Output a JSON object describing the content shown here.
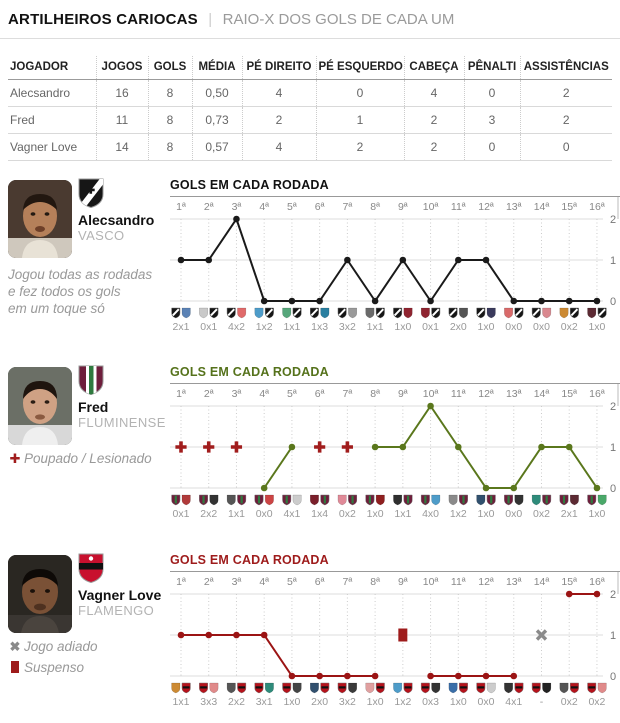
{
  "header": {
    "title": "ARTILHEIROS CARIOCAS",
    "separator": "|",
    "subtitle": "RAIO-X DOS GOLS DE CADA UM"
  },
  "table": {
    "headers": [
      "JOGADOR",
      "JOGOS",
      "GOLS",
      "MÉDIA",
      "PÉ DIREITO",
      "PÉ ESQUERDO",
      "CABEÇA",
      "PÊNALTI",
      "ASSISTÊNCIAS"
    ],
    "rows": [
      {
        "jogador": "Alecsandro",
        "jogos": "16",
        "gols": "8",
        "media": "0,50",
        "pe_direito": "4",
        "pe_esquerdo": "0",
        "cabeca": "4",
        "penalti": "0",
        "assistencias": "2"
      },
      {
        "jogador": "Fred",
        "jogos": "11",
        "gols": "8",
        "media": "0,73",
        "pe_direito": "2",
        "pe_esquerdo": "1",
        "cabeca": "2",
        "penalti": "3",
        "assistencias": "2"
      },
      {
        "jogador": "Vagner Love",
        "jogos": "14",
        "gols": "8",
        "media": "0,57",
        "pe_direito": "4",
        "pe_esquerdo": "2",
        "cabeca": "2",
        "penalti": "0",
        "assistencias": "0"
      }
    ]
  },
  "players": [
    {
      "name": "Alecsandro",
      "club": "VASCO",
      "club_id": "vasco",
      "note": "Jogou todas as rodadas\ne fez todos os gols\nem um toque só",
      "legend": []
    },
    {
      "name": "Fred",
      "club": "FLUMINENSE",
      "club_id": "fluminense",
      "note": "",
      "legend": [
        {
          "symbol": "cross",
          "label": "Poupado / Lesionado"
        }
      ]
    },
    {
      "name": "Vagner Love",
      "club": "FLAMENGO",
      "club_id": "flamengo",
      "note": "",
      "legend": [
        {
          "symbol": "x-mark",
          "label": "Jogo adiado"
        },
        {
          "symbol": "red-card",
          "label": "Suspenso"
        }
      ]
    }
  ],
  "chart_data": [
    {
      "type": "line",
      "player": "Alecsandro",
      "title": "GOLS EM CADA RODADA",
      "title_color": "#111111",
      "line_color": "#1a1a1a",
      "categories": [
        "1ª",
        "2ª",
        "3ª",
        "4ª",
        "5ª",
        "6ª",
        "7ª",
        "8ª",
        "9ª",
        "10ª",
        "11ª",
        "12ª",
        "13ª",
        "14ª",
        "15ª",
        "16ª"
      ],
      "values": [
        1,
        1,
        2,
        0,
        0,
        0,
        1,
        0,
        1,
        0,
        1,
        1,
        0,
        0,
        0,
        0
      ],
      "special": [],
      "scores": [
        "2x1",
        "0x1",
        "4x2",
        "1x2",
        "1x1",
        "1x3",
        "3x2",
        "1x1",
        "1x0",
        "0x1",
        "2x0",
        "1x0",
        "0x0",
        "0x0",
        "0x2",
        "1x0"
      ],
      "badges": [
        [
          "club",
          "#5b82b5"
        ],
        [
          "#c9c9c9",
          "club"
        ],
        [
          "club",
          "#e06a6a"
        ],
        [
          "#4e9cc9",
          "club"
        ],
        [
          "#57a77b",
          "club"
        ],
        [
          "club",
          "#2a7fa0"
        ],
        [
          "club",
          "#9a9a9a"
        ],
        [
          "#6a6a6a",
          "club"
        ],
        [
          "club",
          "#8f2430"
        ],
        [
          "#8f2430",
          "club"
        ],
        [
          "club",
          "#555555"
        ],
        [
          "club",
          "#3a3a5c"
        ],
        [
          "#d96a6a",
          "club"
        ],
        [
          "club",
          "#d9888f"
        ],
        [
          "#cc8a33",
          "club"
        ],
        [
          "#5c2a33",
          "club"
        ]
      ],
      "ylim": [
        0,
        2
      ],
      "yticks": [
        2,
        1,
        0
      ],
      "grid": "vertical-dotted, horizontal-solid",
      "legend_position": "left-panel"
    },
    {
      "type": "line",
      "player": "Fred",
      "title": "GOLS EM CADA RODADA",
      "title_color": "#55721b",
      "line_color": "#5a771c",
      "categories": [
        "1ª",
        "2ª",
        "3ª",
        "4ª",
        "5ª",
        "6ª",
        "7ª",
        "8ª",
        "9ª",
        "10ª",
        "11ª",
        "12ª",
        "13ª",
        "14ª",
        "15ª",
        "16ª"
      ],
      "values": [
        null,
        null,
        null,
        0,
        1,
        null,
        null,
        1,
        1,
        2,
        1,
        0,
        0,
        1,
        1,
        0
      ],
      "special": [
        {
          "round": 1,
          "type": "poupado-lesionado"
        },
        {
          "round": 2,
          "type": "poupado-lesionado"
        },
        {
          "round": 3,
          "type": "poupado-lesionado"
        },
        {
          "round": 6,
          "type": "poupado-lesionado"
        },
        {
          "round": 7,
          "type": "poupado-lesionado"
        }
      ],
      "scores": [
        "0x1",
        "2x2",
        "1x1",
        "0x0",
        "4x1",
        "1x4",
        "0x2",
        "1x0",
        "1x1",
        "4x0",
        "1x2",
        "1x0",
        "0x0",
        "0x2",
        "2x1",
        "1x0"
      ],
      "badges": [
        [
          "club",
          "#b03a3a"
        ],
        [
          "club",
          "#333333"
        ],
        [
          "#555555",
          "club"
        ],
        [
          "club",
          "#cc4444"
        ],
        [
          "club",
          "#cccccc"
        ],
        [
          "#7a1f2b",
          "club"
        ],
        [
          "#e08a98",
          "club"
        ],
        [
          "club",
          "#8f1f1f"
        ],
        [
          "#2f2f2f",
          "club"
        ],
        [
          "club",
          "#4e9cc9"
        ],
        [
          "#8a8a8a",
          "club"
        ],
        [
          "#31506e",
          "club"
        ],
        [
          "club",
          "#333333"
        ],
        [
          "#2e8b7a",
          "club"
        ],
        [
          "club",
          "#5c2a33"
        ],
        [
          "club",
          "#4aa869"
        ]
      ],
      "ylim": [
        0,
        2
      ],
      "yticks": [
        2,
        1,
        0
      ],
      "grid": "vertical-dotted, horizontal-solid",
      "legend_position": "left-panel"
    },
    {
      "type": "line",
      "player": "Vagner Love",
      "title": "GOLS EM CADA RODADA",
      "title_color": "#9e1b1b",
      "line_color": "#9b1414",
      "categories": [
        "1ª",
        "2ª",
        "3ª",
        "4ª",
        "5ª",
        "6ª",
        "7ª",
        "8ª",
        "9ª",
        "10ª",
        "11ª",
        "12ª",
        "13ª",
        "14ª",
        "15ª",
        "16ª"
      ],
      "values": [
        1,
        1,
        1,
        1,
        0,
        0,
        0,
        0,
        null,
        0,
        0,
        0,
        0,
        null,
        2,
        2
      ],
      "special": [
        {
          "round": 9,
          "type": "suspenso"
        },
        {
          "round": 14,
          "type": "jogo-adiado"
        }
      ],
      "scores": [
        "1x1",
        "3x3",
        "2x2",
        "3x1",
        "1x0",
        "2x0",
        "3x2",
        "1x0",
        "1x2",
        "0x3",
        "1x0",
        "0x0",
        "4x1",
        "-",
        "0x2",
        "0x2"
      ],
      "badges": [
        [
          "#cc8a33",
          "club"
        ],
        [
          "club",
          "#e08a8a"
        ],
        [
          "#555555",
          "club"
        ],
        [
          "club",
          "#2e8b7a"
        ],
        [
          "club",
          "#444444"
        ],
        [
          "#31506e",
          "club"
        ],
        [
          "club",
          "#3a3a3a"
        ],
        [
          "#e0a0a0",
          "club"
        ],
        [
          "#4e9cc9",
          "club"
        ],
        [
          "club",
          "#333333"
        ],
        [
          "#3a6ea8",
          "club"
        ],
        [
          "club",
          "#cccccc"
        ],
        [
          "#333333",
          "club"
        ],
        [
          "club",
          "#222222"
        ],
        [
          "#555555",
          "club"
        ],
        [
          "club",
          "#e08a8a"
        ]
      ],
      "ylim": [
        0,
        2
      ],
      "yticks": [
        2,
        1,
        0
      ],
      "grid": "vertical-dotted, horizontal-solid",
      "legend_position": "left-panel"
    }
  ]
}
